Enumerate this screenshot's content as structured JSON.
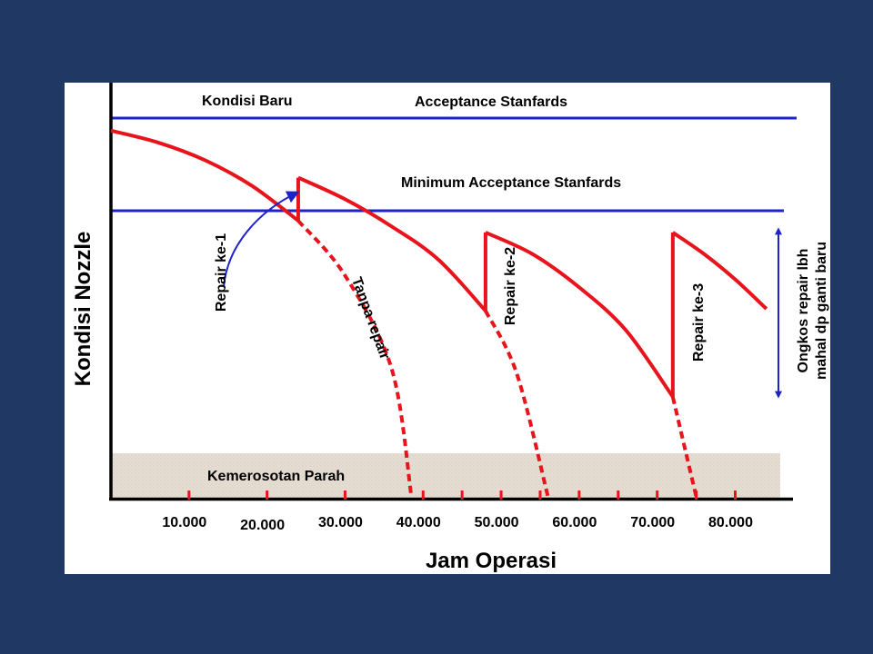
{
  "colors": {
    "background": "#203864",
    "panel": "#ffffff",
    "curve": "#e8141c",
    "reference_line": "#1e22c8",
    "axis": "#000000",
    "severe_band": "#e6ddd3"
  },
  "chart_data": {
    "type": "line",
    "title": "",
    "xlabel": "Jam Operasi",
    "ylabel": "Kondisi Nozzle",
    "xlim": [
      0,
      86000
    ],
    "ylim": [
      0,
      100
    ],
    "grid": false,
    "xticks": [
      {
        "value": 10000,
        "label": "10.000",
        "row": "upper"
      },
      {
        "value": 20000,
        "label": "20.000",
        "row": "lower"
      },
      {
        "value": 30000,
        "label": "30.000",
        "row": "upper"
      },
      {
        "value": 40000,
        "label": "40.000",
        "row": "upper"
      },
      {
        "value": 50000,
        "label": "50.000",
        "row": "upper"
      },
      {
        "value": 60000,
        "label": "60.000",
        "row": "upper"
      },
      {
        "value": 70000,
        "label": "70.000",
        "row": "upper"
      },
      {
        "value": 80000,
        "label": "80.000",
        "row": "upper"
      }
    ],
    "minor_ticks": [
      45000,
      55000,
      65000,
      75000
    ],
    "reference_lines": [
      {
        "y": 92,
        "label": "Acceptance Stanfards"
      },
      {
        "y": 68,
        "label": "Minimum Acceptance Stanfards"
      }
    ],
    "top_left_label": "Kondisi Baru",
    "severe_band": {
      "y_from": 0,
      "y_to": 11,
      "label": "Kemerosotan Parah"
    },
    "series": [
      {
        "style": "solid",
        "points": [
          [
            0,
            94
          ],
          [
            6000,
            91
          ],
          [
            12000,
            86.5
          ],
          [
            18000,
            80
          ],
          [
            24000,
            71
          ]
        ]
      },
      {
        "style": "solid",
        "points": [
          [
            24000,
            71
          ],
          [
            24000,
            82
          ]
        ]
      },
      {
        "style": "solid",
        "points": [
          [
            24000,
            82
          ],
          [
            30000,
            76.5
          ],
          [
            36000,
            69.5
          ],
          [
            42000,
            61
          ],
          [
            48000,
            48
          ]
        ]
      },
      {
        "style": "solid",
        "points": [
          [
            48000,
            48
          ],
          [
            48000,
            68
          ]
        ]
      },
      {
        "style": "solid",
        "points": [
          [
            48000,
            68
          ],
          [
            54000,
            62.5
          ],
          [
            60000,
            54
          ],
          [
            66000,
            43
          ],
          [
            72000,
            26
          ]
        ]
      },
      {
        "style": "solid",
        "points": [
          [
            72000,
            26
          ],
          [
            72000,
            68
          ]
        ]
      },
      {
        "style": "solid",
        "points": [
          [
            72000,
            68
          ],
          [
            76000,
            62.5
          ],
          [
            80000,
            56
          ],
          [
            84000,
            48.5
          ]
        ]
      },
      {
        "style": "dashed",
        "points": [
          [
            24000,
            71
          ],
          [
            30000,
            57
          ],
          [
            36000,
            33
          ],
          [
            38500,
            0.5
          ]
        ]
      },
      {
        "style": "dashed",
        "points": [
          [
            48000,
            48
          ],
          [
            52000,
            32
          ],
          [
            56000,
            0.5
          ]
        ]
      },
      {
        "style": "dashed",
        "points": [
          [
            72000,
            26
          ],
          [
            75000,
            0.5
          ]
        ]
      }
    ],
    "annotations": [
      {
        "text": "Repair ke-1",
        "type": "arrow-label"
      },
      {
        "text": "Tanpa repair"
      },
      {
        "text": "Repair ke-2"
      },
      {
        "text": "Repair ke-3"
      },
      {
        "text": "Ongkos repair lbh",
        "line": 1
      },
      {
        "text": "mahal dp ganti baru",
        "line": 2
      }
    ]
  }
}
